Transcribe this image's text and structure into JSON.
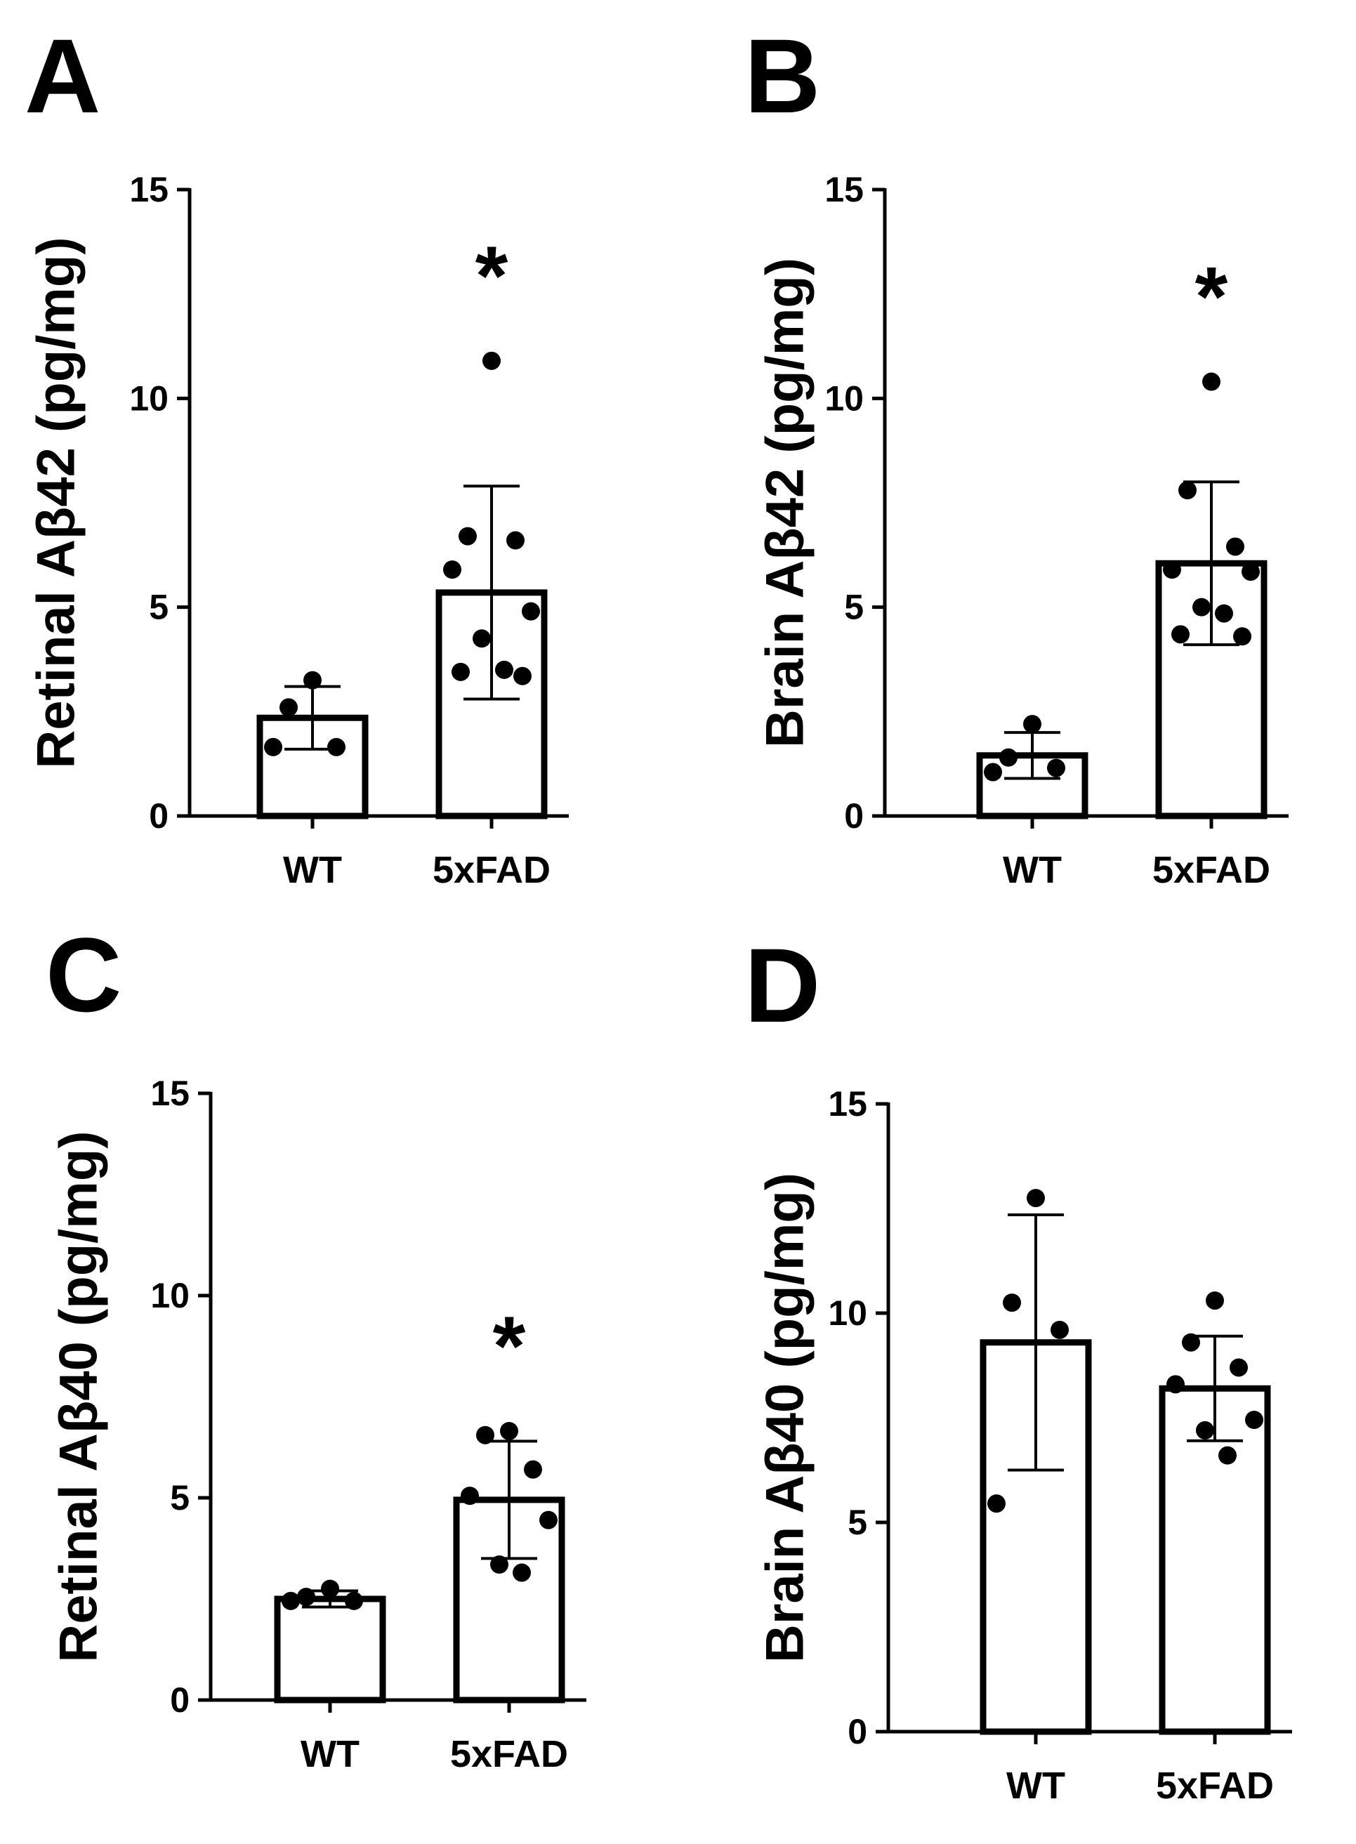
{
  "chart_data": [
    {
      "panel": "A",
      "type": "bar",
      "ylabel": "Retinal Aβ42 (pg/mg)",
      "ylim": [
        0,
        15
      ],
      "yticks": [
        "0",
        "5",
        "10",
        "15"
      ],
      "categories": [
        "WT",
        "5xFAD"
      ],
      "values": [
        2.35,
        5.35
      ],
      "error": [
        0.75,
        2.55
      ],
      "points": [
        [
          3.25,
          2.6,
          1.65,
          1.65
        ],
        [
          10.9,
          6.7,
          6.6,
          5.9,
          4.9,
          4.25,
          3.5,
          3.45,
          3.35
        ]
      ],
      "significance": [
        "",
        "*"
      ]
    },
    {
      "panel": "B",
      "type": "bar",
      "ylabel": "Brain Aβ42 (pg/mg)",
      "ylim": [
        0,
        15
      ],
      "yticks": [
        "0",
        "5",
        "10",
        "15"
      ],
      "categories": [
        "WT",
        "5xFAD"
      ],
      "values": [
        1.45,
        6.05
      ],
      "error": [
        0.55,
        1.95
      ],
      "points": [
        [
          2.2,
          1.4,
          1.15,
          1.05
        ],
        [
          10.4,
          7.8,
          6.45,
          5.9,
          5.85,
          5.0,
          4.85,
          4.35,
          4.3
        ]
      ],
      "significance": [
        "",
        "*"
      ]
    },
    {
      "panel": "C",
      "type": "bar",
      "ylabel": "Retinal Aβ40 (pg/mg)",
      "ylim": [
        0,
        15
      ],
      "yticks": [
        "0",
        "5",
        "10",
        "15"
      ],
      "categories": [
        "WT",
        "5xFAD"
      ],
      "values": [
        2.5,
        4.95
      ],
      "error": [
        0.2,
        1.45
      ],
      "points": [
        [
          2.75,
          2.55,
          2.45,
          2.45
        ],
        [
          6.65,
          6.55,
          5.7,
          5.05,
          4.45,
          3.35,
          3.15
        ]
      ],
      "significance": [
        "",
        "*"
      ]
    },
    {
      "panel": "D",
      "type": "bar",
      "ylabel": "Brain Aβ40 (pg/mg)",
      "ylim": [
        0,
        15
      ],
      "yticks": [
        "0",
        "5",
        "10",
        "15"
      ],
      "categories": [
        "WT",
        "5xFAD"
      ],
      "values": [
        9.3,
        8.2
      ],
      "error": [
        3.05,
        1.25
      ],
      "points": [
        [
          12.75,
          10.25,
          9.6,
          5.45
        ],
        [
          10.3,
          9.3,
          8.7,
          8.3,
          7.45,
          7.2,
          6.6
        ]
      ],
      "significance": [
        "",
        ""
      ]
    }
  ]
}
